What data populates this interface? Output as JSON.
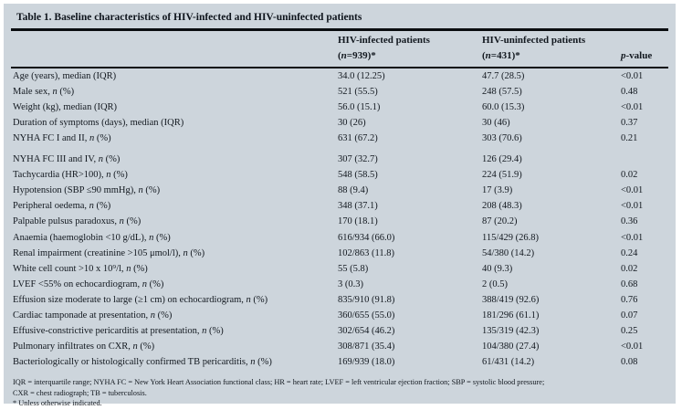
{
  "table": {
    "title": "Table 1. Baseline characteristics of HIV-infected and HIV-uninfected patients",
    "header": {
      "infected_line1": "HIV-infected patients",
      "infected_line2": "(n=939)*",
      "uninfected_line1": "HIV-uninfected patients",
      "uninfected_line2": "(n=431)*",
      "pvalue": "p-value"
    },
    "rows": [
      {
        "label": "Age (years), median (IQR)",
        "infected": "34.0 (12.25)",
        "uninfected": "47.7 (28.5)",
        "p": "<0.01"
      },
      {
        "label": "Male sex, n (%)",
        "infected": "521 (55.5)",
        "uninfected": "248 (57.5)",
        "p": "0.48"
      },
      {
        "label": "Weight (kg), median (IQR)",
        "infected": "56.0 (15.1)",
        "uninfected": "60.0 (15.3)",
        "p": "<0.01"
      },
      {
        "label": "Duration of symptoms (days), median (IQR)",
        "infected": "30 (26)",
        "uninfected": "30 (46)",
        "p": "0.37"
      },
      {
        "label": "NYHA FC I and II, n (%)",
        "infected": "631 (67.2)",
        "uninfected": "303 (70.6)",
        "p": "0.21"
      },
      {
        "label": "NYHA FC III and IV, n (%)",
        "infected": "307 (32.7)",
        "uninfected": "126 (29.4)",
        "p": ""
      },
      {
        "label": "Tachycardia (HR>100), n (%)",
        "infected": "548 (58.5)",
        "uninfected": "224 (51.9)",
        "p": "0.02"
      },
      {
        "label": "Hypotension (SBP ≤90 mmHg), n (%)",
        "infected": "88 (9.4)",
        "uninfected": "17 (3.9)",
        "p": "<0.01"
      },
      {
        "label": "Peripheral oedema, n (%)",
        "infected": "348 (37.1)",
        "uninfected": "208 (48.3)",
        "p": "<0.01"
      },
      {
        "label": "Palpable pulsus paradoxus, n (%)",
        "infected": "170 (18.1)",
        "uninfected": "87 (20.2)",
        "p": "0.36"
      },
      {
        "label": "Anaemia (haemoglobin <10 g/dL), n (%)",
        "infected": "616/934 (66.0)",
        "uninfected": "115/429 (26.8)",
        "p": "<0.01"
      },
      {
        "label": "Renal impairment (creatinine >105 μmol/l), n (%)",
        "infected": "102/863 (11.8)",
        "uninfected": "54/380 (14.2)",
        "p": "0.24"
      },
      {
        "label": "White cell count >10 x 10⁹/l, n (%)",
        "infected": "55 (5.8)",
        "uninfected": "40 (9.3)",
        "p": "0.02"
      },
      {
        "label": "LVEF <55% on echocardiogram, n (%)",
        "infected": "3 (0.3)",
        "uninfected": "2 (0.5)",
        "p": "0.68"
      },
      {
        "label": "Effusion size moderate to large (≥1 cm) on echocardiogram, n (%)",
        "infected": "835/910 (91.8)",
        "uninfected": "388/419 (92.6)",
        "p": "0.76"
      },
      {
        "label": "Cardiac tamponade at presentation, n (%)",
        "infected": "360/655 (55.0)",
        "uninfected": "181/296 (61.1)",
        "p": "0.07"
      },
      {
        "label": "Effusive-constrictive pericarditis at presentation, n (%)",
        "infected": "302/654 (46.2)",
        "uninfected": "135/319 (42.3)",
        "p": "0.25"
      },
      {
        "label": "Pulmonary infiltrates on CXR, n (%)",
        "infected": "308/871 (35.4)",
        "uninfected": "104/380 (27.4)",
        "p": "<0.01"
      },
      {
        "label": "Bacteriologically or histologically confirmed TB pericarditis, n (%)",
        "infected": "169/939 (18.0)",
        "uninfected": "61/431 (14.2)",
        "p": "0.08"
      }
    ],
    "footnotes": [
      "IQR = interquartile range; NYHA FC = New York Heart Association functional class; HR = heart rate; LVEF = left ventricular ejection fraction; SBP = systolic blood pressure;",
      "CXR = chest radiograph; TB = tuberculosis.",
      "* Unless otherwise indicated."
    ]
  },
  "colors": {
    "panel_background": "#cdd5dc",
    "text": "#12181f",
    "rule": "#0a0d10"
  }
}
